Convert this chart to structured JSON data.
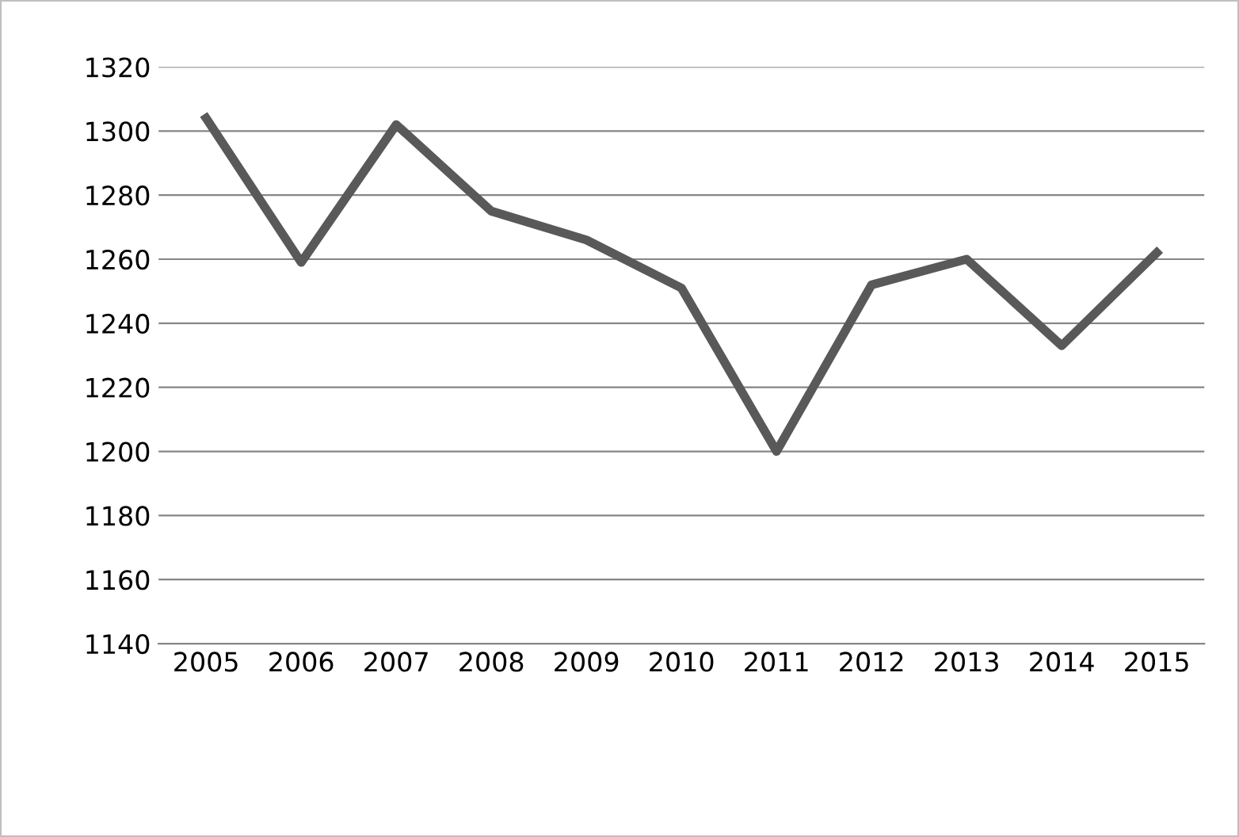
{
  "chart_data": {
    "type": "line",
    "categories": [
      "2005",
      "2006",
      "2007",
      "2008",
      "2009",
      "2010",
      "2011",
      "2012",
      "2013",
      "2014",
      "2015"
    ],
    "series": [
      {
        "color": "#595959",
        "values": [
          1304,
          1259,
          1302,
          1275,
          1266,
          1251,
          1200,
          1252,
          1260,
          1233,
          1262
        ]
      }
    ],
    "ylim": [
      1140,
      1320
    ],
    "yticks": [
      1140,
      1160,
      1180,
      1200,
      1220,
      1240,
      1260,
      1280,
      1300,
      1320
    ],
    "grid": "y",
    "marker": "none",
    "line_style": "solid"
  }
}
